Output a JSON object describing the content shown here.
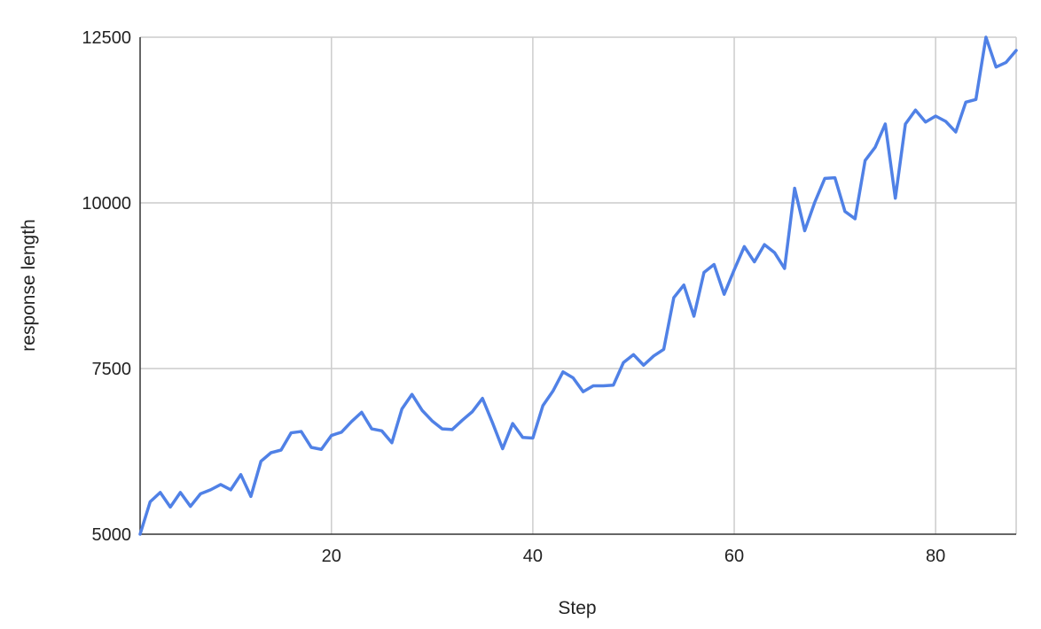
{
  "chart_data": {
    "type": "line",
    "title": "",
    "xlabel": "Step",
    "ylabel": "response length",
    "xlim": [
      1,
      88
    ],
    "ylim": [
      5000,
      12500
    ],
    "xticks": [
      20,
      40,
      60,
      80
    ],
    "yticks": [
      5000,
      7500,
      10000,
      12500
    ],
    "grid": true,
    "legend": "none",
    "series": [
      {
        "color": "#5081e6",
        "x": [
          1,
          2,
          3,
          4,
          5,
          6,
          7,
          8,
          9,
          10,
          11,
          12,
          13,
          14,
          15,
          16,
          17,
          18,
          19,
          20,
          21,
          22,
          23,
          24,
          25,
          26,
          27,
          28,
          29,
          30,
          31,
          32,
          33,
          34,
          35,
          36,
          37,
          38,
          39,
          40,
          41,
          42,
          43,
          44,
          45,
          46,
          47,
          48,
          49,
          50,
          51,
          52,
          53,
          54,
          55,
          56,
          57,
          58,
          59,
          60,
          61,
          62,
          63,
          64,
          65,
          66,
          67,
          68,
          69,
          70,
          71,
          72,
          73,
          74,
          75,
          76,
          77,
          78,
          79,
          80,
          81,
          82,
          83,
          84,
          85,
          86,
          87,
          88
        ],
        "y": [
          5000,
          5490,
          5630,
          5410,
          5630,
          5420,
          5610,
          5670,
          5750,
          5670,
          5900,
          5570,
          6100,
          6230,
          6270,
          6530,
          6550,
          6310,
          6280,
          6490,
          6540,
          6700,
          6840,
          6590,
          6560,
          6380,
          6890,
          7110,
          6870,
          6710,
          6590,
          6580,
          6720,
          6850,
          7050,
          6680,
          6290,
          6670,
          6460,
          6450,
          6940,
          7160,
          7450,
          7360,
          7150,
          7240,
          7240,
          7250,
          7590,
          7710,
          7550,
          7690,
          7790,
          8570,
          8760,
          8290,
          8950,
          9070,
          8620,
          8990,
          9340,
          9110,
          9370,
          9250,
          9010,
          10220,
          9580,
          10010,
          10370,
          10380,
          9870,
          9760,
          10640,
          10840,
          11190,
          10070,
          11190,
          11400,
          11220,
          11310,
          11230,
          11070,
          11520,
          11560,
          12500,
          12050,
          12120,
          12300
        ]
      }
    ]
  }
}
